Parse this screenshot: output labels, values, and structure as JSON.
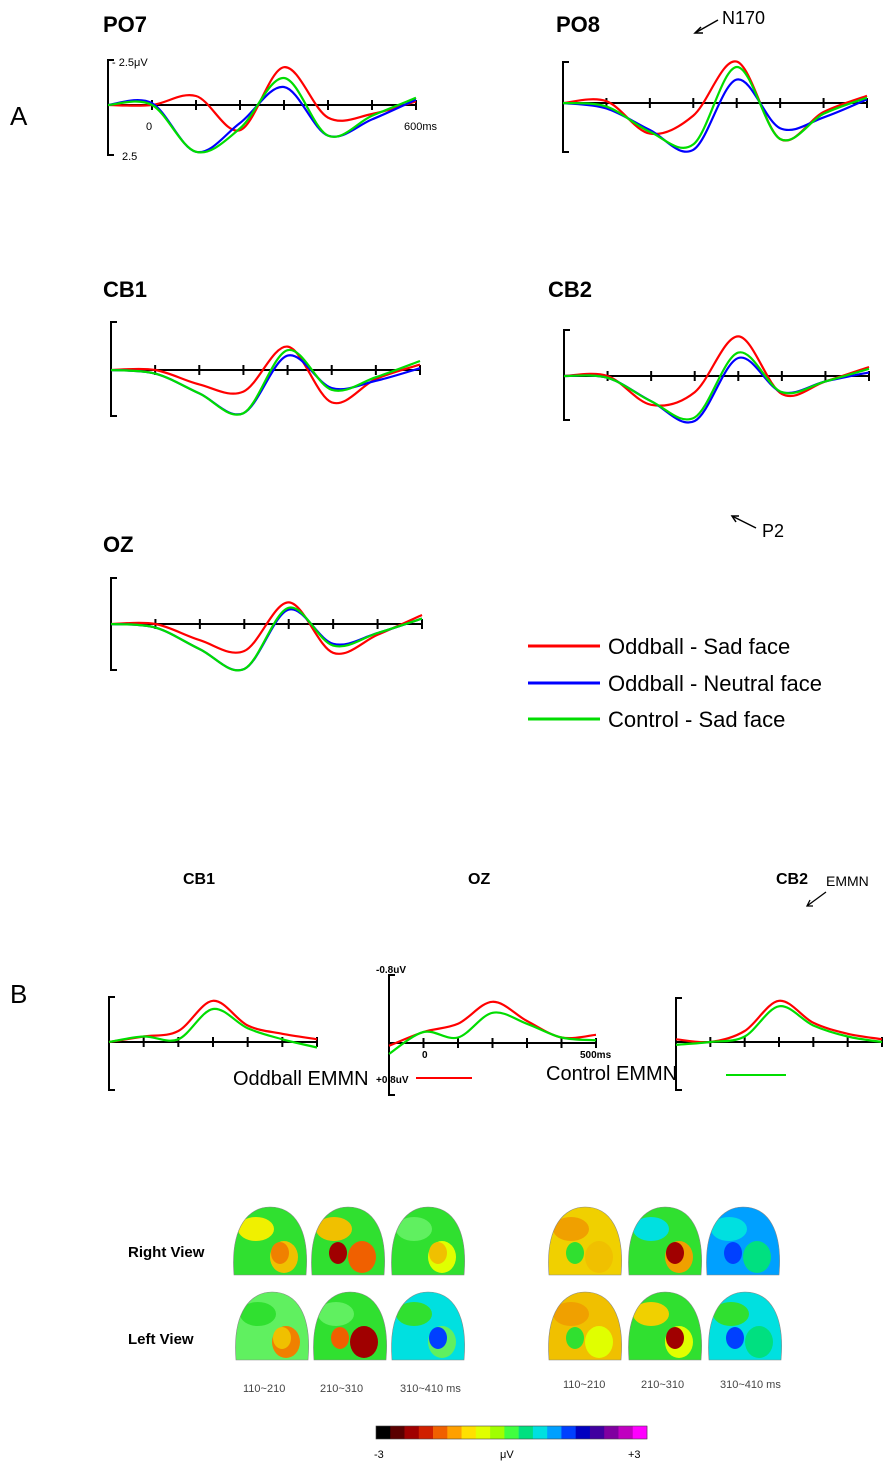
{
  "panel_labels": [
    "A",
    "B"
  ],
  "legend": {
    "entries": [
      {
        "label": "Oddball - Sad face",
        "color": "#ff0000"
      },
      {
        "label": "Oddball - Neutral face",
        "color": "#0000ff"
      },
      {
        "label": "Control - Sad face",
        "color": "#00dd00"
      }
    ]
  },
  "annotations": {
    "n170": "N170",
    "p2": "P2",
    "emmn": "EMMN"
  },
  "axis_text": {
    "a_top": "- 2.5μV",
    "a_bottom": "2.5",
    "a_zero": "0",
    "a_end": "600ms",
    "b_top": "-0.8uV",
    "b_bottom": "+0.8uV",
    "b_zero": "0",
    "b_end": "500ms"
  },
  "emmn_legend": {
    "oddball": "Oddball EMMN",
    "control": "Control EMMN"
  },
  "topo": {
    "right_view": "Right View",
    "left_view": "Left View",
    "windows": [
      "110~210",
      "210~310",
      "310~410 ms"
    ]
  },
  "colorbar": {
    "min_label": "-3",
    "unit_label": "μV",
    "max_label": "+3",
    "colors": [
      "#000000",
      "#5a0000",
      "#a00000",
      "#d02000",
      "#f06000",
      "#ffa000",
      "#ffe000",
      "#e0ff00",
      "#a0ff00",
      "#40ff40",
      "#00e080",
      "#00e0e0",
      "#00a0ff",
      "#0040ff",
      "#0000c0",
      "#4000a0",
      "#8000a0",
      "#c000c0",
      "#ff00ff"
    ]
  },
  "chart_data": [
    {
      "type": "line",
      "title": "PO7",
      "xlabel": "",
      "ylabel": "",
      "x": [
        -100,
        0,
        100,
        200,
        300,
        400,
        500,
        600
      ],
      "xlim": [
        -100,
        600
      ],
      "ylim": [
        -2.5,
        2.5
      ],
      "y_inverted": true,
      "series": [
        {
          "name": "Oddball - Sad face",
          "color": "#ff0000",
          "values": [
            0.0,
            0.0,
            -0.5,
            1.4,
            -2.1,
            0.7,
            0.5,
            -0.2
          ]
        },
        {
          "name": "Oddball - Neutral face",
          "color": "#0000ff",
          "values": [
            0.0,
            -0.1,
            2.6,
            1.0,
            -1.0,
            1.7,
            0.8,
            -0.3
          ]
        },
        {
          "name": "Control - Sad face",
          "color": "#00dd00",
          "values": [
            0.0,
            0.0,
            2.6,
            1.3,
            -1.5,
            1.7,
            0.6,
            -0.4
          ]
        }
      ]
    },
    {
      "type": "line",
      "title": "PO8",
      "xlabel": "",
      "ylabel": "",
      "x": [
        -100,
        0,
        100,
        200,
        300,
        400,
        500,
        600
      ],
      "xlim": [
        -100,
        600
      ],
      "ylim": [
        -2.5,
        2.5
      ],
      "y_inverted": true,
      "series": [
        {
          "name": "Oddball - Sad face",
          "color": "#ff0000",
          "values": [
            0.0,
            -0.1,
            1.7,
            0.7,
            -2.3,
            2.0,
            0.5,
            -0.4
          ]
        },
        {
          "name": "Oddball - Neutral face",
          "color": "#0000ff",
          "values": [
            0.0,
            0.3,
            1.5,
            2.6,
            -1.3,
            1.4,
            0.8,
            -0.2
          ]
        },
        {
          "name": "Control - Sad face",
          "color": "#00dd00",
          "values": [
            0.0,
            0.2,
            1.6,
            2.3,
            -2.0,
            2.0,
            0.6,
            -0.3
          ]
        }
      ]
    },
    {
      "type": "line",
      "title": "CB1",
      "xlabel": "",
      "ylabel": "",
      "x": [
        -100,
        0,
        100,
        200,
        300,
        400,
        500,
        600
      ],
      "xlim": [
        -100,
        600
      ],
      "ylim": [
        -2.5,
        2.5
      ],
      "y_inverted": true,
      "series": [
        {
          "name": "Oddball - Sad face",
          "color": "#ff0000",
          "values": [
            0.0,
            0.0,
            0.8,
            1.2,
            -1.3,
            1.8,
            0.5,
            -0.3
          ]
        },
        {
          "name": "Oddball - Neutral face",
          "color": "#0000ff",
          "values": [
            0.0,
            0.2,
            1.3,
            2.4,
            -0.8,
            1.0,
            0.6,
            -0.1
          ]
        },
        {
          "name": "Control - Sad face",
          "color": "#00dd00",
          "values": [
            0.0,
            0.2,
            1.3,
            2.4,
            -1.1,
            1.1,
            0.4,
            -0.5
          ]
        }
      ]
    },
    {
      "type": "line",
      "title": "CB2",
      "xlabel": "",
      "ylabel": "",
      "x": [
        -100,
        0,
        100,
        200,
        300,
        400,
        500,
        600
      ],
      "xlim": [
        -100,
        600
      ],
      "ylim": [
        -2.5,
        2.5
      ],
      "y_inverted": true,
      "series": [
        {
          "name": "Oddball - Sad face",
          "color": "#ff0000",
          "values": [
            0.0,
            0.0,
            1.6,
            0.9,
            -2.2,
            1.0,
            0.3,
            -0.5
          ]
        },
        {
          "name": "Oddball - Neutral face",
          "color": "#0000ff",
          "values": [
            0.0,
            0.1,
            1.4,
            2.5,
            -1.0,
            0.9,
            0.3,
            -0.2
          ]
        },
        {
          "name": "Control - Sad face",
          "color": "#00dd00",
          "values": [
            0.0,
            0.1,
            1.4,
            2.3,
            -1.3,
            0.9,
            0.3,
            -0.4
          ]
        }
      ]
    },
    {
      "type": "line",
      "title": "OZ",
      "xlabel": "",
      "ylabel": "",
      "x": [
        -100,
        0,
        100,
        200,
        300,
        400,
        500,
        600
      ],
      "xlim": [
        -100,
        600
      ],
      "ylim": [
        -2.5,
        2.5
      ],
      "y_inverted": true,
      "series": [
        {
          "name": "Oddball - Sad face",
          "color": "#ff0000",
          "values": [
            0.0,
            0.0,
            0.9,
            1.5,
            -1.2,
            1.6,
            0.6,
            -0.5
          ]
        },
        {
          "name": "Oddball - Neutral face",
          "color": "#0000ff",
          "values": [
            0.0,
            0.2,
            1.4,
            2.5,
            -0.8,
            1.1,
            0.5,
            -0.3
          ]
        },
        {
          "name": "Control - Sad face",
          "color": "#00dd00",
          "values": [
            0.0,
            0.2,
            1.4,
            2.5,
            -0.9,
            1.2,
            0.5,
            -0.3
          ]
        }
      ]
    },
    {
      "type": "line",
      "title": "CB1",
      "xlabel": "",
      "ylabel": "",
      "x": [
        -100,
        0,
        100,
        200,
        300,
        400,
        500
      ],
      "xlim": [
        -100,
        500
      ],
      "ylim": [
        -0.8,
        0.8
      ],
      "y_inverted": true,
      "series": [
        {
          "name": "Oddball EMMN",
          "color": "#ff0000",
          "values": [
            0.0,
            -0.1,
            -0.2,
            -0.75,
            -0.3,
            -0.15,
            -0.05
          ]
        },
        {
          "name": "Control EMMN",
          "color": "#00dd00",
          "values": [
            0.0,
            -0.1,
            -0.05,
            -0.6,
            -0.25,
            -0.05,
            0.1
          ]
        }
      ]
    },
    {
      "type": "line",
      "title": "OZ",
      "xlabel": "",
      "ylabel": "",
      "x": [
        -100,
        0,
        100,
        200,
        300,
        400,
        500
      ],
      "xlim": [
        -100,
        500
      ],
      "ylim": [
        -0.8,
        0.8
      ],
      "y_inverted": true,
      "series": [
        {
          "name": "Oddball EMMN",
          "color": "#ff0000",
          "values": [
            0.05,
            -0.2,
            -0.35,
            -0.75,
            -0.4,
            -0.1,
            -0.15
          ]
        },
        {
          "name": "Control EMMN",
          "color": "#00dd00",
          "values": [
            0.2,
            -0.2,
            -0.1,
            -0.55,
            -0.35,
            -0.1,
            -0.05
          ]
        }
      ]
    },
    {
      "type": "line",
      "title": "CB2",
      "xlabel": "",
      "ylabel": "",
      "x": [
        -100,
        0,
        100,
        200,
        300,
        400,
        500
      ],
      "xlim": [
        -100,
        500
      ],
      "ylim": [
        -0.8,
        0.8
      ],
      "y_inverted": true,
      "series": [
        {
          "name": "Oddball EMMN",
          "color": "#ff0000",
          "values": [
            -0.05,
            0.0,
            -0.2,
            -0.75,
            -0.35,
            -0.15,
            -0.05
          ]
        },
        {
          "name": "Control EMMN",
          "color": "#00dd00",
          "values": [
            0.05,
            0.0,
            -0.1,
            -0.65,
            -0.3,
            -0.1,
            0.0
          ]
        }
      ]
    }
  ]
}
